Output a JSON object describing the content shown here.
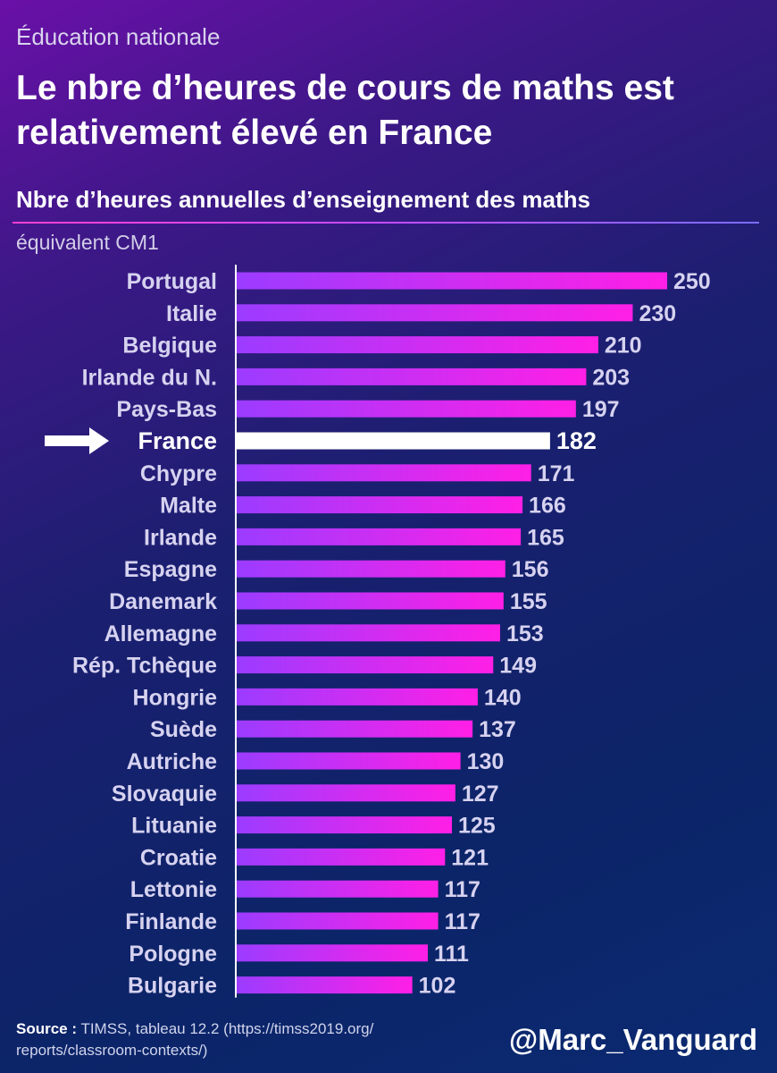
{
  "header": {
    "kicker": "Éducation nationale",
    "title": "Le nbre d’heures de cours de maths est relativement élevé en France"
  },
  "chart_data": {
    "type": "bar",
    "orientation": "horizontal",
    "title": "Nbre d’heures annuelles d’enseignement des maths",
    "subtitle": "équivalent CM1",
    "categories": [
      "Portugal",
      "Italie",
      "Belgique",
      "Irlande du N.",
      "Pays-Bas",
      "France",
      "Chypre",
      "Malte",
      "Irlande",
      "Espagne",
      "Danemark",
      "Allemagne",
      "Rép. Tchèque",
      "Hongrie",
      "Suède",
      "Autriche",
      "Slovaquie",
      "Lituanie",
      "Croatie",
      "Lettonie",
      "Finlande",
      "Pologne",
      "Bulgarie"
    ],
    "values": [
      250,
      230,
      210,
      203,
      197,
      182,
      171,
      166,
      165,
      156,
      155,
      153,
      149,
      140,
      137,
      130,
      127,
      125,
      121,
      117,
      117,
      111,
      102
    ],
    "highlight": "France",
    "xlim": [
      0,
      250
    ],
    "colors": {
      "bar_start": "#9b3cff",
      "bar_end": "#ff1fe6",
      "highlight": "#ffffff"
    }
  },
  "footer": {
    "source_label": "Source :",
    "source_text": "TIMSS, tableau 12.2 (https://timss2019.org/ reports/classroom-contexts/)",
    "handle": "@Marc_Vanguard"
  }
}
